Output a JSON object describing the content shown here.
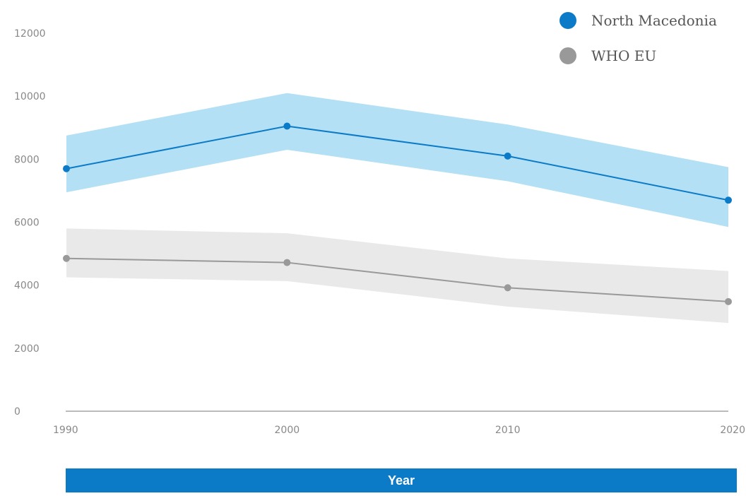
{
  "chart_data": {
    "type": "line",
    "x": [
      "1990",
      "2000",
      "2010",
      "2020"
    ],
    "series": [
      {
        "name": "North Macedonia",
        "color": "#0b7ac7",
        "band_color": "#b3e0f5",
        "values": [
          7700,
          9050,
          8100,
          6700
        ],
        "lower": [
          6950,
          8300,
          7300,
          5850
        ],
        "upper": [
          8750,
          10100,
          9100,
          7750
        ]
      },
      {
        "name": "WHO EU",
        "color": "#999999",
        "band_color": "#e9e9e9",
        "values": [
          4850,
          4720,
          3920,
          3480
        ],
        "lower": [
          4250,
          4130,
          3320,
          2800
        ],
        "upper": [
          5800,
          5650,
          4850,
          4450
        ]
      }
    ],
    "y_ticks": [
      "0",
      "2000",
      "4000",
      "6000",
      "8000",
      "10000",
      "12000"
    ],
    "ylim": [
      0,
      12000
    ],
    "xlabel": "Year",
    "ylabel": "",
    "legend_position": "top-right",
    "grid": false
  }
}
